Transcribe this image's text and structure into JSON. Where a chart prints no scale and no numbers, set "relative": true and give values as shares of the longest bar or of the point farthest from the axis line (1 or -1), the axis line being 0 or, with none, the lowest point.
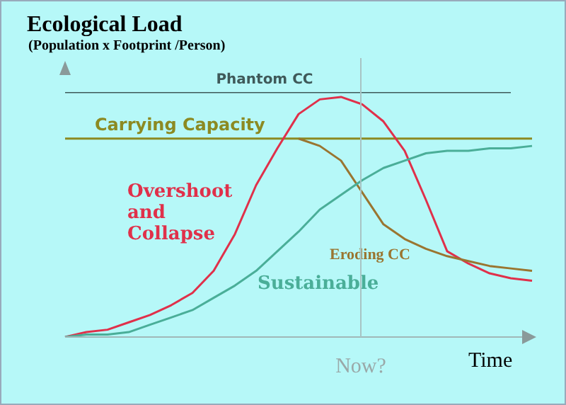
{
  "chart_data": {
    "type": "line",
    "title": "Ecological Load",
    "subtitle": "(Population x Footprint /Person)",
    "xlabel": "Time",
    "relative": true,
    "categories": [
      null,
      null,
      null,
      null,
      null,
      null,
      null,
      null,
      null,
      null,
      null,
      null,
      null,
      null,
      null,
      null,
      null,
      null,
      null,
      null,
      null,
      null,
      null
    ],
    "annotations": [
      "Now?"
    ],
    "series": [
      {
        "name": "Phantom CC",
        "color": "#3f5a5a",
        "values": [
          1,
          1,
          1,
          1,
          1,
          1,
          1,
          1,
          1,
          1,
          1,
          1,
          1,
          1,
          1,
          1,
          1,
          1,
          1,
          1,
          1,
          1,
          null
        ]
      },
      {
        "name": "Carrying Capacity",
        "color": "#8c8a22",
        "values": [
          0.81,
          0.81,
          0.81,
          0.81,
          0.81,
          0.81,
          0.81,
          0.81,
          0.81,
          0.81,
          0.81,
          0.81,
          0.81,
          0.81,
          0.81,
          0.81,
          0.81,
          0.81,
          0.81,
          0.81,
          0.81,
          0.81,
          0.81
        ]
      },
      {
        "name": "Overshoot and Collapse",
        "color": "#e0304a",
        "values": [
          0,
          0.02,
          0.03,
          0.06,
          0.09,
          0.13,
          0.18,
          0.27,
          0.42,
          0.62,
          0.77,
          0.91,
          0.97,
          0.98,
          0.95,
          0.88,
          0.76,
          0.56,
          0.35,
          0.3,
          0.26,
          0.24,
          0.23
        ]
      },
      {
        "name": "Eroding CC",
        "color": "#9a7530",
        "values": [
          null,
          null,
          null,
          null,
          null,
          null,
          null,
          null,
          null,
          null,
          null,
          0.81,
          0.78,
          0.72,
          0.59,
          0.46,
          0.4,
          0.36,
          0.33,
          0.31,
          0.29,
          0.28,
          0.27
        ]
      },
      {
        "name": "Sustainable",
        "color": "#4aae98",
        "values": [
          0,
          0.01,
          0.01,
          0.02,
          0.05,
          0.08,
          0.11,
          0.16,
          0.21,
          0.27,
          0.35,
          0.43,
          0.52,
          0.58,
          0.64,
          0.69,
          0.72,
          0.75,
          0.76,
          0.76,
          0.77,
          0.77,
          0.78
        ]
      }
    ]
  }
}
